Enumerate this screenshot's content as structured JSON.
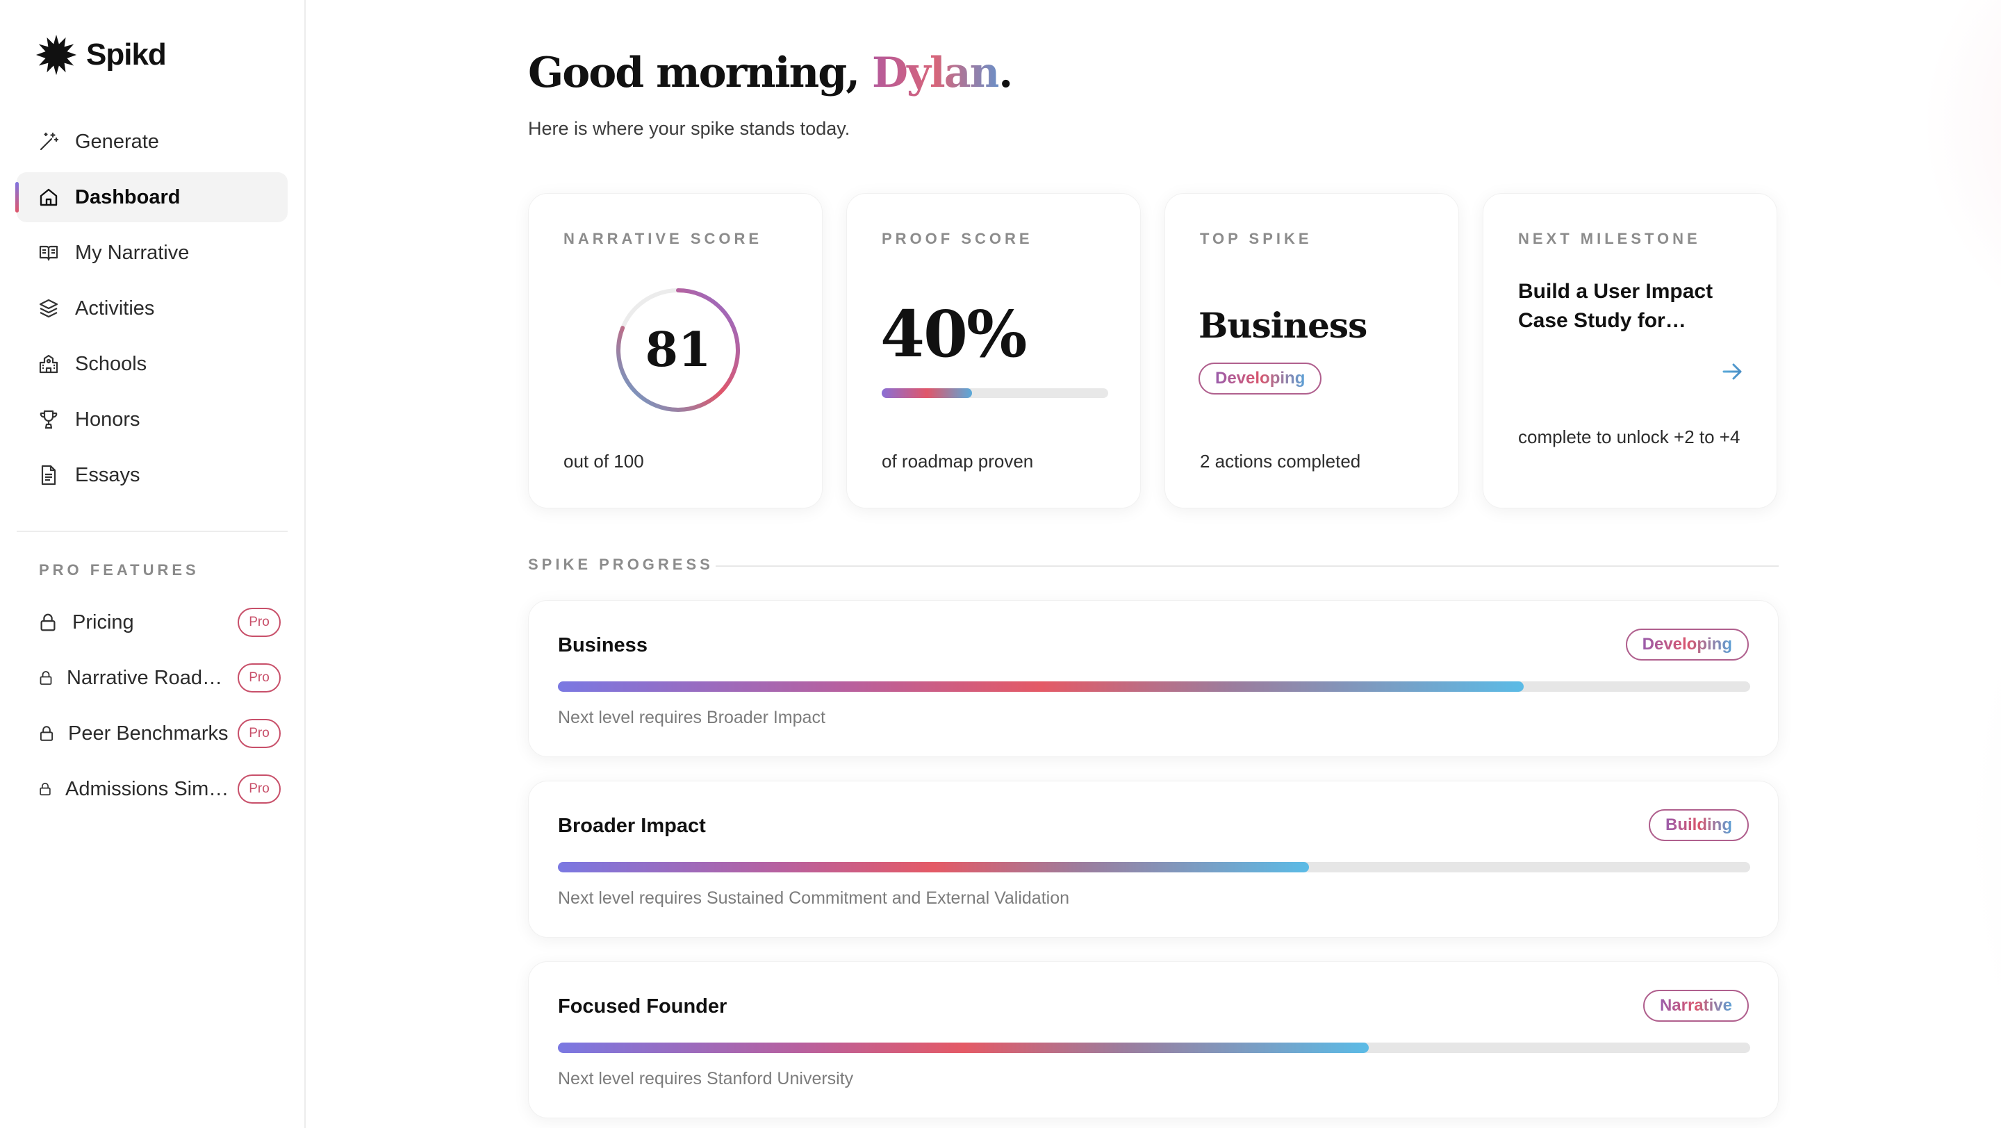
{
  "brand": {
    "name": "Spikd"
  },
  "sidebar": {
    "items": [
      {
        "label": "Generate",
        "icon": "magic-wand-icon",
        "active": false
      },
      {
        "label": "Dashboard",
        "icon": "home-icon",
        "active": true
      },
      {
        "label": "My Narrative",
        "icon": "book-icon",
        "active": false
      },
      {
        "label": "Activities",
        "icon": "layers-icon",
        "active": false
      },
      {
        "label": "Schools",
        "icon": "school-icon",
        "active": false
      },
      {
        "label": "Honors",
        "icon": "trophy-icon",
        "active": false
      },
      {
        "label": "Essays",
        "icon": "document-icon",
        "active": false
      }
    ],
    "pro_title": "PRO FEATURES",
    "pro_items": [
      {
        "label": "Pricing",
        "badge": "Pro",
        "icon": "lock-icon"
      },
      {
        "label": "Narrative Roadmap",
        "badge": "Pro",
        "icon": "lock-icon"
      },
      {
        "label": "Peer Benchmarks",
        "badge": "Pro",
        "icon": "lock-icon"
      },
      {
        "label": "Admissions Simulator",
        "badge": "Pro",
        "icon": "lock-icon"
      }
    ]
  },
  "header": {
    "greeting_prefix": "Good morning, ",
    "name": "Dylan",
    "greeting_suffix": ".",
    "subtitle": "Here is where your spike stands today."
  },
  "cards": {
    "narrative": {
      "label": "NARRATIVE SCORE",
      "value": "81",
      "score": 81,
      "max": 100,
      "foot": "out of 100"
    },
    "proof": {
      "label": "PROOF SCORE",
      "value": "40%",
      "percent": 40,
      "foot": "of roadmap proven"
    },
    "top_spike": {
      "label": "TOP SPIKE",
      "name": "Business",
      "status": "Developing",
      "foot": "2 actions completed"
    },
    "milestone": {
      "label": "NEXT MILESTONE",
      "title": "Build a User Impact Case Study for…",
      "foot": "complete to unlock +2 to +4",
      "icon": "arrow-right-icon"
    }
  },
  "spike_progress": {
    "label": "SPIKE PROGRESS",
    "items": [
      {
        "title": "Business",
        "status": "Developing",
        "progress": 0.81,
        "next": "Next level requires Broader Impact"
      },
      {
        "title": "Broader Impact",
        "status": "Building",
        "progress": 0.63,
        "next": "Next level requires Sustained Commitment and External Validation"
      },
      {
        "title": "Focused Founder",
        "status": "Narrative",
        "progress": 0.68,
        "next": "Next level requires Stanford University"
      }
    ]
  },
  "colors": {
    "accent_purple": "#8a6fd5",
    "accent_red": "#e0566a",
    "accent_blue": "#5aa9d9",
    "badge_pro": "#c8506a"
  }
}
